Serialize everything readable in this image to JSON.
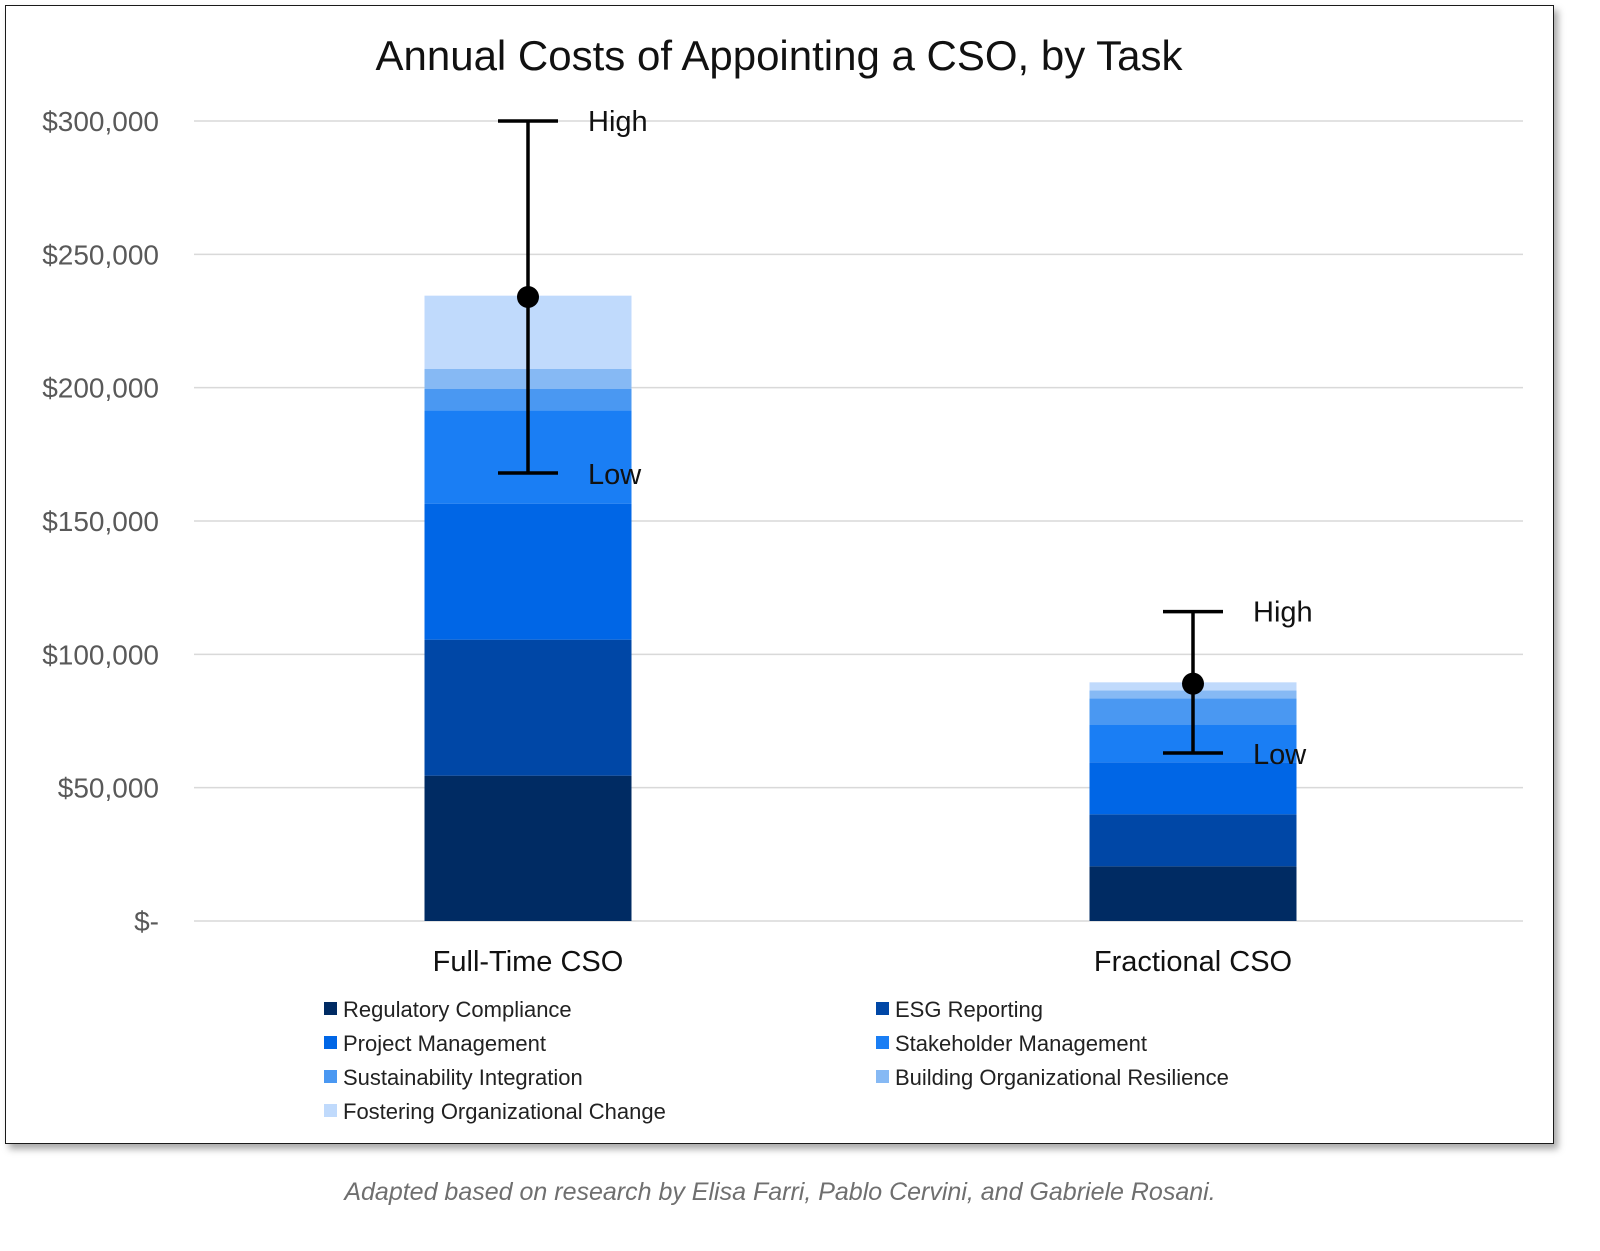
{
  "chart_data": {
    "type": "bar",
    "stacked": true,
    "title": "Annual Costs of Appointing a CSO, by Task",
    "categories": [
      "Full-Time CSO",
      "Fractional CSO"
    ],
    "ylim": [
      0,
      300000
    ],
    "y_ticks": [
      0,
      50000,
      100000,
      150000,
      200000,
      250000,
      300000
    ],
    "y_tick_labels": [
      "$-",
      "$50,000",
      "$100,000",
      "$150,000",
      "$200,000",
      "$250,000",
      "$300,000"
    ],
    "grid": true,
    "legend_position": "bottom",
    "series": [
      {
        "name": "Regulatory Compliance",
        "color": "#002b63",
        "values": [
          54500,
          20500
        ]
      },
      {
        "name": "ESG Reporting",
        "color": "#0047a6",
        "values": [
          51000,
          19500
        ]
      },
      {
        "name": "Project Management",
        "color": "#0066e6",
        "values": [
          51000,
          19500
        ]
      },
      {
        "name": "Stakeholder Management",
        "color": "#1a7ef4",
        "values": [
          35000,
          14000
        ]
      },
      {
        "name": "Sustainability Integration",
        "color": "#4a98f2",
        "values": [
          8000,
          10000
        ]
      },
      {
        "name": "Building Organizational Resilience",
        "color": "#86b9f4",
        "values": [
          7500,
          3000
        ]
      },
      {
        "name": "Fostering Organizational Change",
        "color": "#c0dafc",
        "values": [
          27500,
          3000
        ]
      }
    ],
    "ranges": [
      {
        "category": "Full-Time CSO",
        "point": 234000,
        "low": 168000,
        "high": 300000,
        "low_label": "Low",
        "high_label": "High"
      },
      {
        "category": "Fractional CSO",
        "point": 89000,
        "low": 63000,
        "high": 116000,
        "low_label": "Low",
        "high_label": "High"
      }
    ]
  },
  "caption": "Adapted based on research by Elisa Farri, Pablo Cervini, and Gabriele Rosani."
}
